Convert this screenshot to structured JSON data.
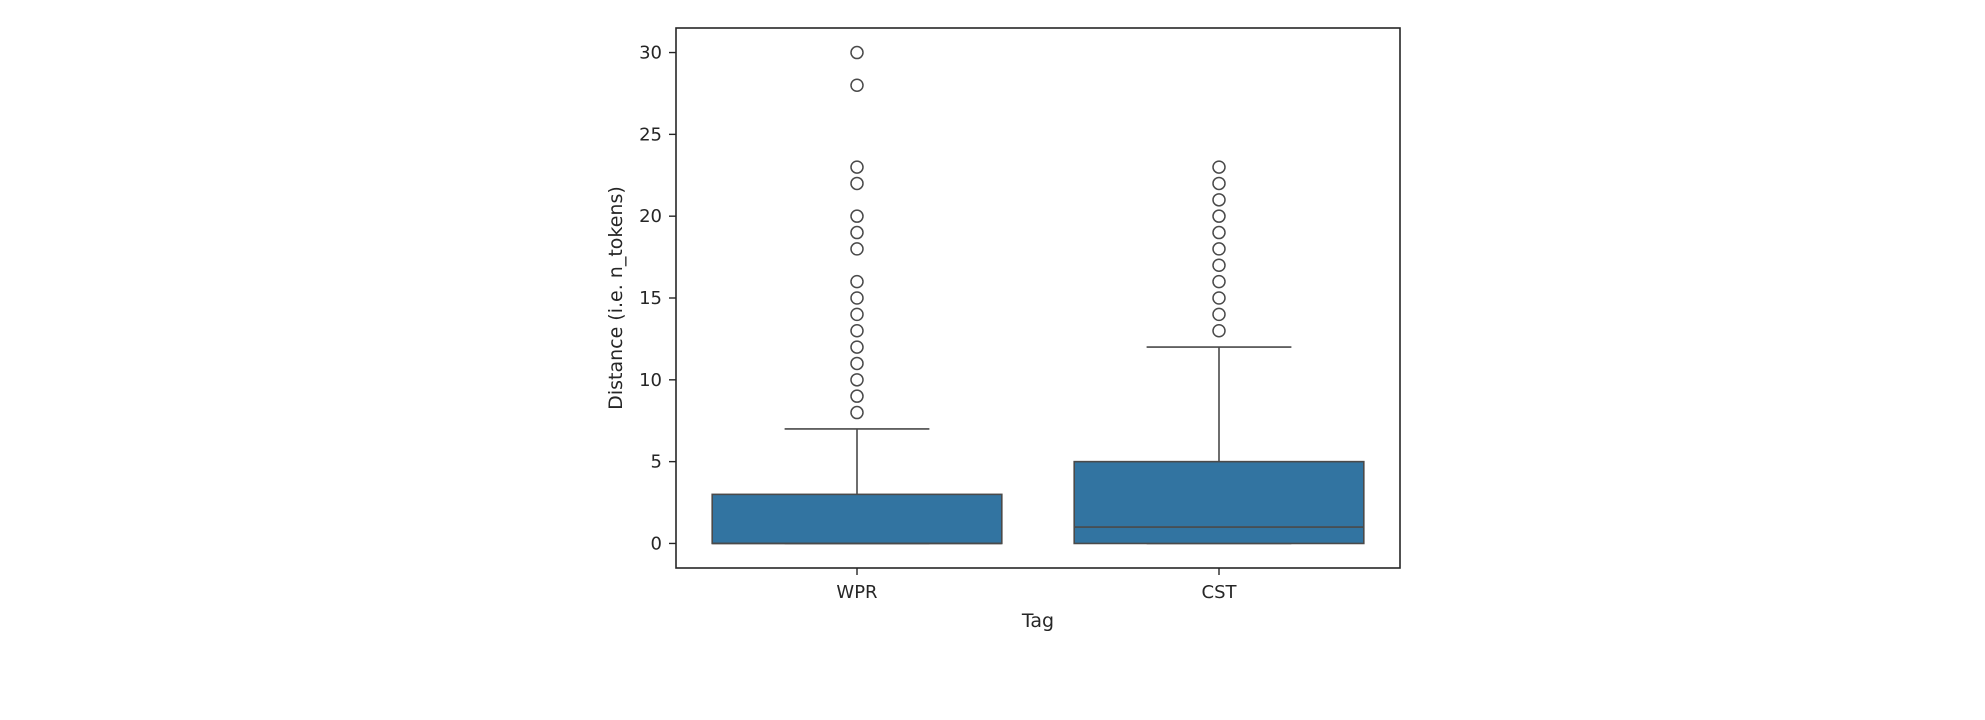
{
  "chart_data": {
    "type": "box",
    "title": "",
    "xlabel": "Tag",
    "ylabel": "Distance (i.e. n_tokens)",
    "categories": [
      "WPR",
      "CST"
    ],
    "ylim": [
      -1.5,
      31.5
    ],
    "yticks": [
      0,
      5,
      10,
      15,
      20,
      25,
      30
    ],
    "grid": false,
    "box_color": "#3274a1",
    "line_color": "#4a4a4a",
    "boxes": [
      {
        "category": "WPR",
        "whisker_low": 0,
        "q1": 0,
        "median": 0,
        "q3": 3,
        "whisker_high": 7,
        "outliers": [
          8,
          9,
          10,
          11,
          12,
          13,
          14,
          15,
          16,
          18,
          19,
          20,
          22,
          23,
          28,
          30
        ]
      },
      {
        "category": "CST",
        "whisker_low": 0,
        "q1": 0,
        "median": 1,
        "q3": 5,
        "whisker_high": 12,
        "outliers": [
          13,
          14,
          15,
          16,
          17,
          18,
          19,
          20,
          21,
          22,
          23
        ]
      }
    ]
  }
}
